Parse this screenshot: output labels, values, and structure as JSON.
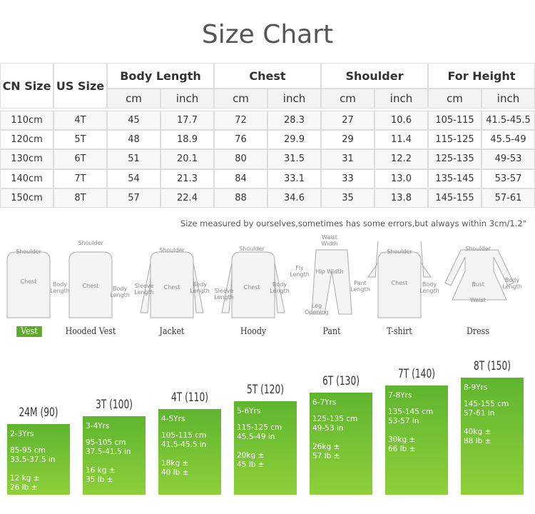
{
  "title": "Size Chart",
  "table": {
    "headers": [
      "CN Size",
      "US Size",
      "Body Length",
      "Chest",
      "Shoulder",
      "For Height"
    ],
    "units": [
      "cm",
      "inch",
      "cm",
      "inch",
      "cm",
      "inch",
      "cm",
      "inch"
    ],
    "rows": [
      [
        "110cm",
        "4T",
        "45",
        "17.7",
        "72",
        "28.3",
        "27",
        "10.6",
        "105-115",
        "41.5-45.5"
      ],
      [
        "120cm",
        "5T",
        "48",
        "18.9",
        "76",
        "29.9",
        "29",
        "11.4",
        "115-125",
        "45.5-49"
      ],
      [
        "130cm",
        "6T",
        "51",
        "20.1",
        "80",
        "31.5",
        "31",
        "12.2",
        "125-135",
        "49-53"
      ],
      [
        "140cm",
        "7T",
        "54",
        "21.3",
        "84",
        "33.1",
        "33",
        "13.0",
        "135-145",
        "53-57"
      ],
      [
        "150cm",
        "8T",
        "57",
        "22.4",
        "88",
        "34.6",
        "35",
        "13.8",
        "145-155",
        "57-61"
      ]
    ]
  },
  "note": "Size measured by ourselves,sometimes has some errors,but always within 3cm/1.2\"",
  "garments": [
    {
      "name": "Vest",
      "labels": [
        "Shoulder",
        "Chest",
        "Body Length"
      ]
    },
    {
      "name": "Hooded Vest",
      "labels": [
        "Shoulder",
        "Chest",
        "Body Length"
      ]
    },
    {
      "name": "Jacket",
      "labels": [
        "Shoulder",
        "Sleeve Length",
        "Chest",
        "Body Length"
      ]
    },
    {
      "name": "Hoody",
      "labels": [
        "Shoulder",
        "Sleeve Length",
        "Chest",
        "Body Length"
      ]
    },
    {
      "name": "Pant",
      "labels": [
        "Waist Width",
        "Fly Length",
        "Hip Width",
        "Pant Length",
        "Leg Opening"
      ]
    },
    {
      "name": "T-shirt",
      "labels": [
        "Shoulder",
        "Chest",
        "Body Length"
      ]
    },
    {
      "name": "Dress",
      "labels": [
        "Shoulder",
        "Bust",
        "Waist",
        "Body Length"
      ]
    }
  ],
  "age_bars": [
    {
      "size": "24M (90)",
      "age": "2-3Yrs",
      "height_cm": "85-95 cm",
      "height_in": "33.5-37.5 in",
      "weight_kg": "12 kg ±",
      "weight_lb": "26 lb ±"
    },
    {
      "size": "3T (100)",
      "age": "3-4Yrs",
      "height_cm": "95-105 cm",
      "height_in": "37.5-41.5 in",
      "weight_kg": "16 kg ±",
      "weight_lb": "35 lb ±"
    },
    {
      "size": "4T (110)",
      "age": "4-5Yrs",
      "height_cm": "105-115 cm",
      "height_in": "41.5-45.5 in",
      "weight_kg": "18kg ±",
      "weight_lb": "40 lb ±"
    },
    {
      "size": "5T (120)",
      "age": "5-6Yrs",
      "height_cm": "115-125 cm",
      "height_in": "45.5-49 in",
      "weight_kg": "20kg ±",
      "weight_lb": "45 lb ±"
    },
    {
      "size": "6T (130)",
      "age": "6-7Yrs",
      "height_cm": "125-135 cm",
      "height_in": "49-53 in",
      "weight_kg": "26kg ±",
      "weight_lb": "57 lb ±"
    },
    {
      "size": "7T (140)",
      "age": "7-8Yrs",
      "height_cm": "135-145 cm",
      "height_in": "53-57 in",
      "weight_kg": "30kg ±",
      "weight_lb": "66 lb ±"
    },
    {
      "size": "8T (150)",
      "age": "8-9Yrs",
      "height_cm": "145-155 cm",
      "height_in": "57-61 in",
      "weight_kg": "40kg ±",
      "weight_lb": "88 lb ±"
    }
  ]
}
